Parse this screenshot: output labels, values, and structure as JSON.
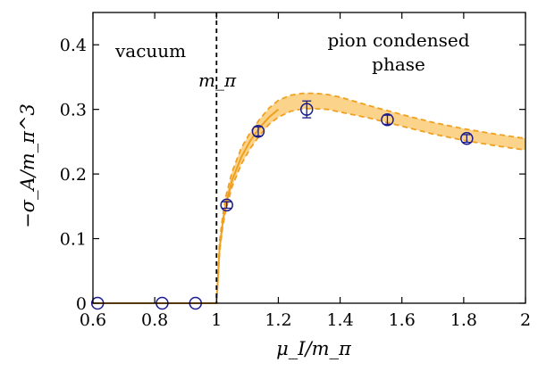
{
  "chart_data": {
    "type": "scatter",
    "xlabel": "μ_I/m_π",
    "ylabel": "−σ_A/m_π^3",
    "xlim": [
      0.6,
      2.0
    ],
    "ylim": [
      0,
      0.45
    ],
    "xticks": [
      0.6,
      0.8,
      1.0,
      1.2,
      1.4,
      1.6,
      1.8,
      2.0
    ],
    "xtick_labels": [
      "0.6",
      "0.8",
      "1",
      "1.2",
      "1.4",
      "1.6",
      "1.8",
      "2"
    ],
    "yticks": [
      0,
      0.1,
      0.2,
      0.3,
      0.4
    ],
    "ytick_labels": [
      "0",
      "0.1",
      "0.2",
      "0.3",
      "0.4"
    ],
    "grid": false,
    "annotations": {
      "vacuum": "vacuum",
      "phase_line1": "pion condensed",
      "phase_line2": "phase",
      "threshold": "m_π"
    },
    "threshold_x": 1.0,
    "points": [
      {
        "x": 0.615,
        "y": 0.0,
        "err": 0.0
      },
      {
        "x": 0.824,
        "y": 0.0,
        "err": 0.0
      },
      {
        "x": 0.932,
        "y": 0.0,
        "err": 0.0
      },
      {
        "x": 1.033,
        "y": 0.152,
        "err": 0.005
      },
      {
        "x": 1.135,
        "y": 0.266,
        "err": 0.007
      },
      {
        "x": 1.292,
        "y": 0.3,
        "err": 0.013
      },
      {
        "x": 1.553,
        "y": 0.284,
        "err": 0.007
      },
      {
        "x": 1.81,
        "y": 0.255,
        "err": 0.006
      }
    ],
    "band": {
      "x": [
        1.0,
        1.01,
        1.02,
        1.03,
        1.05,
        1.08,
        1.11,
        1.14,
        1.17,
        1.2,
        1.24,
        1.28,
        1.32,
        1.36,
        1.4,
        1.5,
        1.6,
        1.7,
        1.8,
        1.9,
        2.0
      ],
      "upper": [
        0.0,
        0.095,
        0.135,
        0.165,
        0.203,
        0.24,
        0.265,
        0.285,
        0.302,
        0.314,
        0.322,
        0.325,
        0.325,
        0.323,
        0.319,
        0.305,
        0.292,
        0.28,
        0.27,
        0.262,
        0.255
      ],
      "lower": [
        0.0,
        0.08,
        0.118,
        0.145,
        0.18,
        0.215,
        0.24,
        0.26,
        0.277,
        0.288,
        0.297,
        0.301,
        0.301,
        0.3,
        0.296,
        0.286,
        0.274,
        0.262,
        0.252,
        0.244,
        0.237
      ]
    },
    "curve_solid": {
      "x": [
        0.6,
        1.0,
        1.01,
        1.02,
        1.03,
        1.05,
        1.08,
        1.11,
        1.14,
        1.17,
        1.2
      ],
      "y": [
        0.0,
        0.0,
        0.085,
        0.125,
        0.153,
        0.19,
        0.226,
        0.252,
        0.272,
        0.288,
        0.3
      ]
    },
    "colors": {
      "band_fill": "#fbd38a",
      "band_edge": "#f0a020",
      "curve": "#f0a020",
      "points": "#1a1a8c",
      "threshold_line": "#000000"
    }
  }
}
